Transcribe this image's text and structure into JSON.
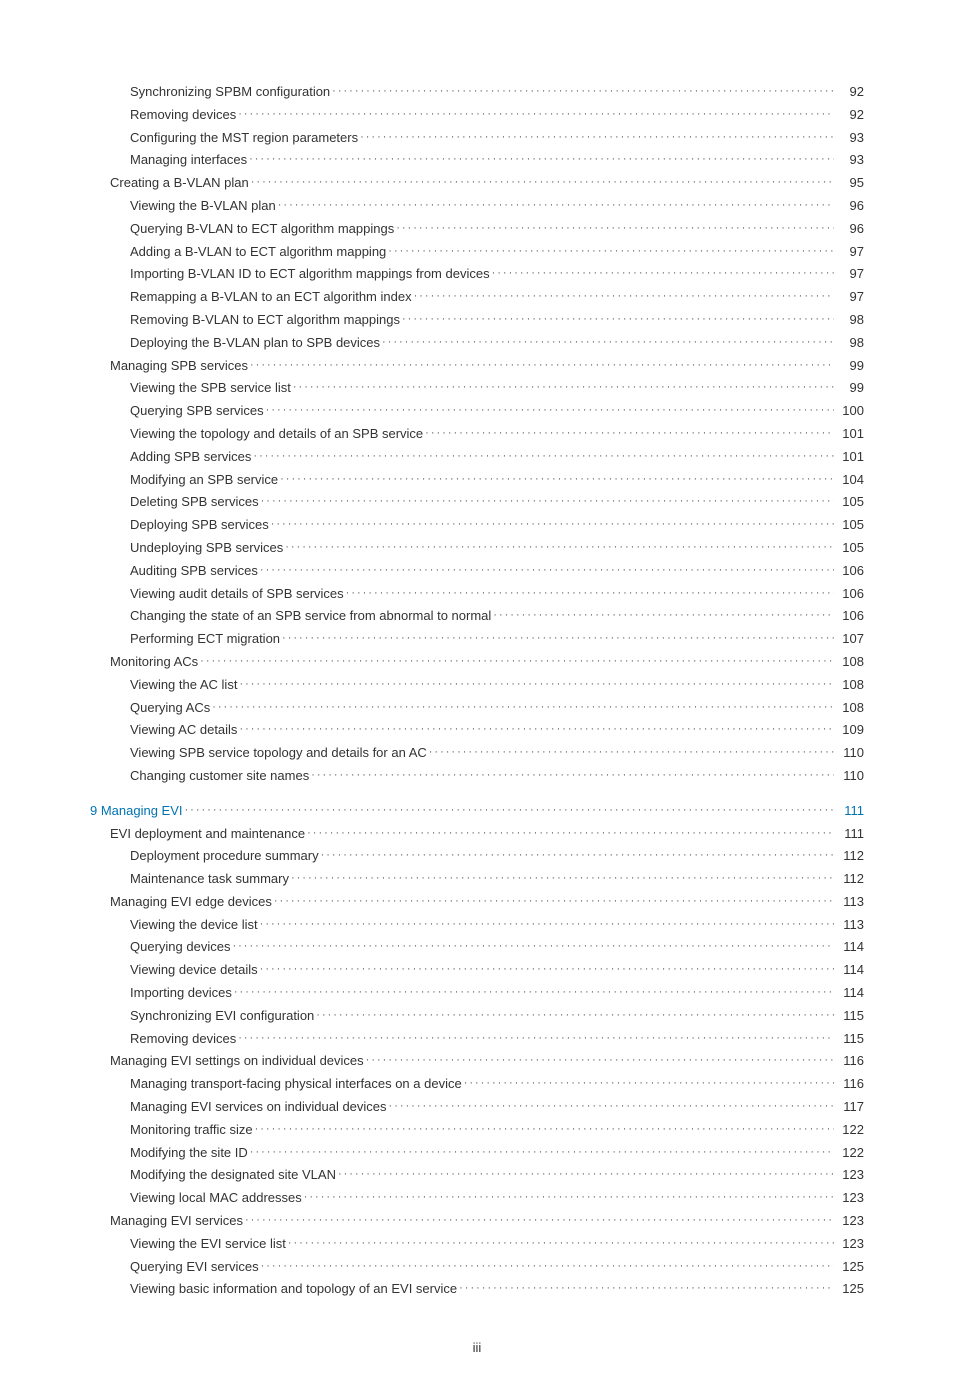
{
  "page_footer": "iii",
  "toc": [
    {
      "indent": 2,
      "title": "Synchronizing SPBM configuration",
      "page": "92"
    },
    {
      "indent": 2,
      "title": "Removing devices",
      "page": "92"
    },
    {
      "indent": 2,
      "title": "Configuring the MST region parameters",
      "page": "93"
    },
    {
      "indent": 2,
      "title": "Managing interfaces",
      "page": "93"
    },
    {
      "indent": 1,
      "title": "Creating a B-VLAN plan",
      "page": "95"
    },
    {
      "indent": 2,
      "title": "Viewing the B-VLAN plan",
      "page": "96"
    },
    {
      "indent": 2,
      "title": "Querying B-VLAN to ECT algorithm mappings",
      "page": "96"
    },
    {
      "indent": 2,
      "title": "Adding a B-VLAN to ECT algorithm mapping",
      "page": "97"
    },
    {
      "indent": 2,
      "title": "Importing B-VLAN ID to ECT algorithm mappings from devices",
      "page": "97"
    },
    {
      "indent": 2,
      "title": "Remapping a B-VLAN to an ECT algorithm index",
      "page": "97"
    },
    {
      "indent": 2,
      "title": "Removing B-VLAN to ECT algorithm mappings",
      "page": "98"
    },
    {
      "indent": 2,
      "title": "Deploying the B-VLAN plan to SPB devices",
      "page": "98"
    },
    {
      "indent": 1,
      "title": "Managing SPB services",
      "page": "99"
    },
    {
      "indent": 2,
      "title": "Viewing the SPB service list",
      "page": "99"
    },
    {
      "indent": 2,
      "title": "Querying SPB services",
      "page": "100"
    },
    {
      "indent": 2,
      "title": "Viewing the topology and details of an SPB service",
      "page": "101"
    },
    {
      "indent": 2,
      "title": "Adding SPB services",
      "page": "101"
    },
    {
      "indent": 2,
      "title": "Modifying an SPB service",
      "page": "104"
    },
    {
      "indent": 2,
      "title": "Deleting SPB services",
      "page": "105"
    },
    {
      "indent": 2,
      "title": "Deploying SPB services",
      "page": "105"
    },
    {
      "indent": 2,
      "title": "Undeploying SPB services",
      "page": "105"
    },
    {
      "indent": 2,
      "title": "Auditing SPB services",
      "page": "106"
    },
    {
      "indent": 2,
      "title": "Viewing audit details of SPB services",
      "page": "106"
    },
    {
      "indent": 2,
      "title": "Changing the state of an SPB service from abnormal to normal",
      "page": "106"
    },
    {
      "indent": 2,
      "title": "Performing ECT migration",
      "page": "107"
    },
    {
      "indent": 1,
      "title": "Monitoring ACs",
      "page": "108"
    },
    {
      "indent": 2,
      "title": "Viewing the AC list",
      "page": "108"
    },
    {
      "indent": 2,
      "title": "Querying ACs",
      "page": "108"
    },
    {
      "indent": 2,
      "title": "Viewing AC details",
      "page": "109"
    },
    {
      "indent": 2,
      "title": "Viewing SPB service topology and details for an AC",
      "page": "110"
    },
    {
      "indent": 2,
      "title": "Changing customer site names",
      "page": "110"
    },
    {
      "indent": 0,
      "title": "9 Managing EVI",
      "page": "111",
      "link": true,
      "gap": true
    },
    {
      "indent": 1,
      "title": "EVI deployment and maintenance",
      "page": "111"
    },
    {
      "indent": 2,
      "title": "Deployment procedure summary",
      "page": "112"
    },
    {
      "indent": 2,
      "title": "Maintenance task summary",
      "page": "112"
    },
    {
      "indent": 1,
      "title": "Managing EVI edge devices",
      "page": "113"
    },
    {
      "indent": 2,
      "title": "Viewing the device list",
      "page": "113"
    },
    {
      "indent": 2,
      "title": "Querying devices",
      "page": "114"
    },
    {
      "indent": 2,
      "title": "Viewing device details",
      "page": "114"
    },
    {
      "indent": 2,
      "title": "Importing devices",
      "page": "114"
    },
    {
      "indent": 2,
      "title": "Synchronizing EVI configuration",
      "page": "115"
    },
    {
      "indent": 2,
      "title": "Removing devices",
      "page": "115"
    },
    {
      "indent": 1,
      "title": "Managing EVI settings on individual devices",
      "page": "116"
    },
    {
      "indent": 2,
      "title": "Managing transport-facing physical interfaces on a device",
      "page": "116"
    },
    {
      "indent": 2,
      "title": "Managing EVI services on individual devices",
      "page": "117"
    },
    {
      "indent": 2,
      "title": "Monitoring traffic size",
      "page": "122"
    },
    {
      "indent": 2,
      "title": "Modifying the site ID",
      "page": "122"
    },
    {
      "indent": 2,
      "title": "Modifying the designated site VLAN",
      "page": "123"
    },
    {
      "indent": 2,
      "title": "Viewing local MAC addresses",
      "page": "123"
    },
    {
      "indent": 1,
      "title": "Managing EVI services",
      "page": "123"
    },
    {
      "indent": 2,
      "title": "Viewing the EVI service list",
      "page": "123"
    },
    {
      "indent": 2,
      "title": "Querying EVI services",
      "page": "125"
    },
    {
      "indent": 2,
      "title": "Viewing basic information and topology of an EVI service",
      "page": "125"
    }
  ]
}
